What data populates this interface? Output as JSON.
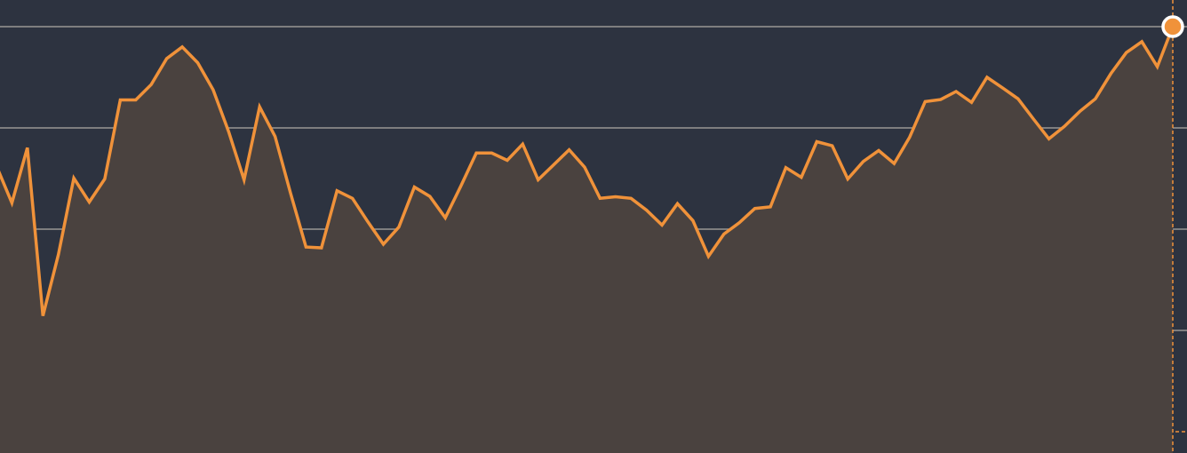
{
  "colors": {
    "background": "#2d3340",
    "line": "#f0923a",
    "area_fill": "#4a423f",
    "grid": "#9a9794",
    "marker_fill": "#f0923a",
    "marker_stroke": "#ffffff"
  },
  "chart_data": {
    "type": "area",
    "grid": true,
    "ylim": [
      0,
      100
    ],
    "gridlines": [
      0,
      25,
      50,
      75,
      100
    ],
    "x": [
      0,
      1,
      2,
      3,
      4,
      5,
      6,
      7,
      8,
      9,
      10,
      11,
      12,
      13,
      14,
      15,
      16,
      17,
      18,
      19,
      20,
      21,
      22,
      23,
      24,
      25,
      26,
      27,
      28,
      29,
      30,
      31,
      32,
      33,
      34,
      35,
      36,
      37,
      38,
      39,
      40,
      41,
      42,
      43,
      44,
      45,
      46,
      47,
      48,
      49,
      50,
      51,
      52,
      53,
      54,
      55,
      56,
      57,
      58,
      59,
      60,
      61,
      62,
      63,
      64,
      65,
      66,
      67,
      68,
      69,
      70,
      71,
      72,
      73,
      74,
      75,
      76
    ],
    "series": [
      {
        "values": [
          65.6,
          56.5,
          70.1,
          28.6,
          43.7,
          62.6,
          56.7,
          62.4,
          81.9,
          81.9,
          85.7,
          92.1,
          95.0,
          91.1,
          84.4,
          74.1,
          62.2,
          80.2,
          72.9,
          58.9,
          45.6,
          45.4,
          59.5,
          57.6,
          51.8,
          46.3,
          50.5,
          60.4,
          58.1,
          52.8,
          60.6,
          68.8,
          68.8,
          67.0,
          71.0,
          62.2,
          65.9,
          69.6,
          65.3,
          57.6,
          58.0,
          57.6,
          54.7,
          51.0,
          56.3,
          52.1,
          43.3,
          48.8,
          51.6,
          55.1,
          55.5,
          65.2,
          62.8,
          71.6,
          70.6,
          62.4,
          66.7,
          69.4,
          66.2,
          72.7,
          81.5,
          82.0,
          84.0,
          81.3,
          87.5,
          84.9,
          82.2,
          77.2,
          72.3,
          75.4,
          79.1,
          82.2,
          88.4,
          93.6,
          96.3,
          90.1,
          100.0
        ]
      }
    ]
  }
}
